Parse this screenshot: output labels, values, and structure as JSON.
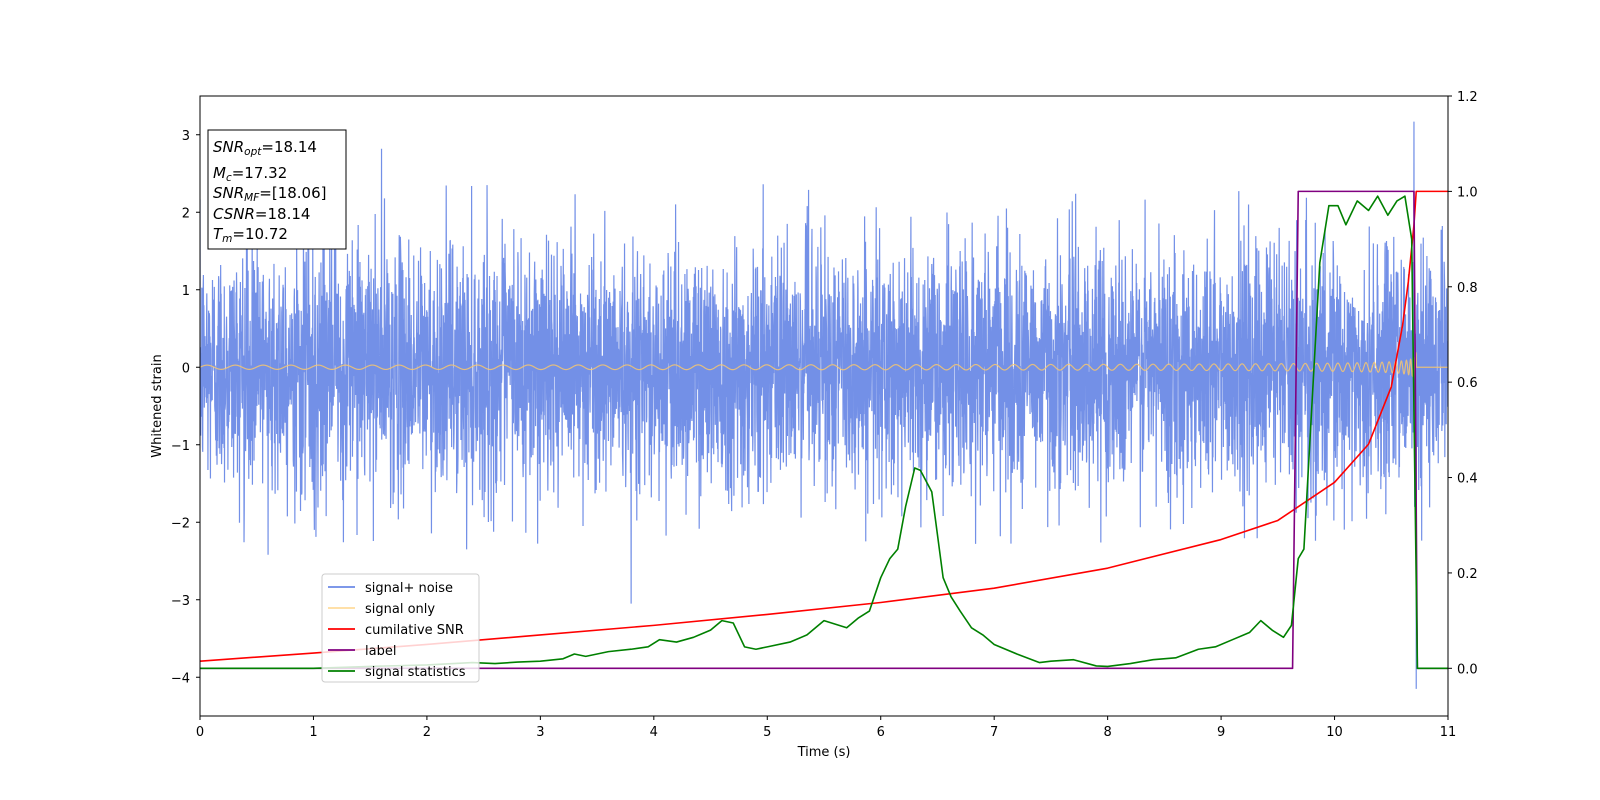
{
  "chart_data": {
    "type": "line",
    "title": "",
    "xlabel": "Time (s)",
    "ylabel": "Whitened strain",
    "xlim": [
      0,
      11
    ],
    "ylim": [
      -4.5,
      3.5
    ],
    "y2lim": [
      -0.1,
      1.2
    ],
    "x_ticks": [
      "0",
      "1",
      "2",
      "3",
      "4",
      "5",
      "6",
      "7",
      "8",
      "9",
      "10",
      "11"
    ],
    "y_ticks": [
      "−4",
      "−3",
      "−2",
      "−1",
      "0",
      "1",
      "2",
      "3"
    ],
    "y_tick_values": [
      -4,
      -3,
      -2,
      -1,
      0,
      1,
      2,
      3
    ],
    "y2_ticks": [
      "0.0",
      "0.2",
      "0.4",
      "0.6",
      "0.8",
      "1.0",
      "1.2"
    ],
    "y2_tick_values": [
      0.0,
      0.2,
      0.4,
      0.6,
      0.8,
      1.0,
      1.2
    ],
    "grid": false,
    "legend_position": "lower-left",
    "series": [
      {
        "name": "signal+ noise",
        "axis": "left",
        "color": "#6b8ae6",
        "description_kind": "noise",
        "x": [
          0,
          11
        ],
        "amplitude_envelope": [
          -2.0,
          2.2
        ],
        "spikes": [
          [
            1.6,
            2.82
          ],
          [
            3.8,
            -3.05
          ],
          [
            0.6,
            -2.42
          ],
          [
            10.7,
            3.17
          ],
          [
            10.72,
            -4.15
          ],
          [
            2.35,
            -2.35
          ]
        ]
      },
      {
        "name": "signal only",
        "axis": "left",
        "color": "#ffc966",
        "description_kind": "chirp",
        "chirp_start_freq": 4,
        "chirp_merger_time": 10.72,
        "max_amplitude": 1.2,
        "min_amplitude": 0.03
      },
      {
        "name": "cumilative SNR",
        "axis": "right",
        "color": "#ff0000",
        "x": [
          0,
          1,
          2,
          3,
          4,
          5,
          6,
          7,
          8,
          9,
          9.5,
          10,
          10.3,
          10.5,
          10.6,
          10.65,
          10.7,
          10.72,
          11
        ],
        "y": [
          0.015,
          0.032,
          0.05,
          0.07,
          0.09,
          0.113,
          0.138,
          0.168,
          0.21,
          0.27,
          0.31,
          0.39,
          0.47,
          0.59,
          0.72,
          0.81,
          0.93,
          1.0,
          1.0
        ]
      },
      {
        "name": "label",
        "axis": "right",
        "color": "#800080",
        "x": [
          0,
          9.63,
          9.68,
          10.7,
          10.73,
          11
        ],
        "y": [
          0.0,
          0.0,
          1.0,
          1.0,
          0.0,
          0.0
        ]
      },
      {
        "name": "signal statistics",
        "axis": "right",
        "color": "#008000",
        "x": [
          0,
          0.5,
          1,
          1.5,
          2,
          2.4,
          2.6,
          2.8,
          3.0,
          3.2,
          3.3,
          3.4,
          3.6,
          3.8,
          3.95,
          4.05,
          4.2,
          4.35,
          4.5,
          4.6,
          4.7,
          4.8,
          4.9,
          5.0,
          5.2,
          5.35,
          5.5,
          5.7,
          5.8,
          5.9,
          6.0,
          6.08,
          6.15,
          6.22,
          6.3,
          6.35,
          6.45,
          6.55,
          6.62,
          6.7,
          6.8,
          6.9,
          7.0,
          7.2,
          7.4,
          7.5,
          7.7,
          7.9,
          8.0,
          8.2,
          8.4,
          8.6,
          8.8,
          8.95,
          9.1,
          9.25,
          9.35,
          9.45,
          9.55,
          9.62,
          9.68,
          9.73,
          9.8,
          9.87,
          9.95,
          10.03,
          10.1,
          10.2,
          10.3,
          10.38,
          10.47,
          10.55,
          10.62,
          10.68,
          10.73,
          10.78,
          11
        ],
        "y": [
          0.0,
          0.0,
          0.0,
          0.004,
          0.007,
          0.012,
          0.01,
          0.013,
          0.015,
          0.02,
          0.03,
          0.025,
          0.035,
          0.04,
          0.045,
          0.06,
          0.055,
          0.065,
          0.08,
          0.1,
          0.095,
          0.045,
          0.04,
          0.045,
          0.055,
          0.07,
          0.1,
          0.085,
          0.105,
          0.12,
          0.19,
          0.23,
          0.25,
          0.34,
          0.42,
          0.415,
          0.37,
          0.19,
          0.15,
          0.12,
          0.085,
          0.07,
          0.05,
          0.03,
          0.012,
          0.015,
          0.018,
          0.005,
          0.004,
          0.01,
          0.018,
          0.022,
          0.04,
          0.045,
          0.06,
          0.075,
          0.1,
          0.08,
          0.065,
          0.09,
          0.23,
          0.25,
          0.55,
          0.85,
          0.97,
          0.97,
          0.93,
          0.98,
          0.96,
          0.99,
          0.95,
          0.98,
          0.99,
          0.9,
          0.0,
          0.0,
          0.0
        ]
      }
    ],
    "annotation_box": {
      "lines": [
        {
          "italic": "SNR",
          "sub": "opt",
          "rest": "=18.14"
        },
        {
          "italic": "M",
          "sub": "c",
          "rest": "=17.32"
        },
        {
          "italic": "SNR",
          "sub": "MF",
          "rest": "=[18.06]"
        },
        {
          "italic": "CSNR",
          "sub": "",
          "rest": "=18.14"
        },
        {
          "italic": "T",
          "sub": "m",
          "rest": "=10.72"
        }
      ]
    }
  }
}
